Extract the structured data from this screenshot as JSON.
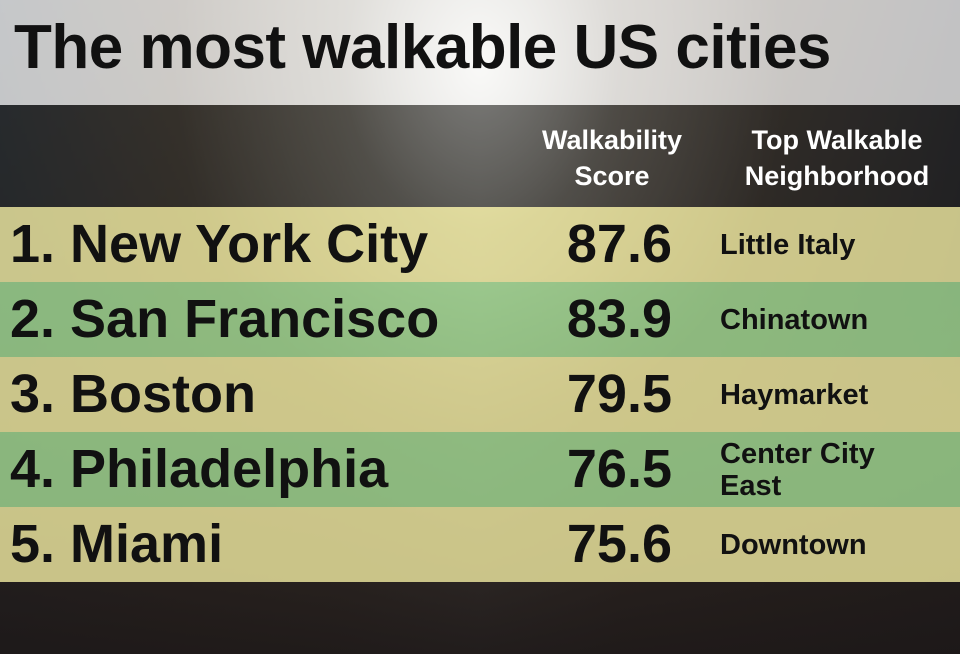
{
  "header": {
    "title": "The most walkable US cities"
  },
  "table": {
    "columns": [
      "Walkability Score",
      "Top Walkable Neighborhood"
    ],
    "rows": [
      {
        "city": "1. New York City",
        "score": 87.6,
        "neighborhood": "Little Italy"
      },
      {
        "city": "2. San Francisco",
        "score": 83.9,
        "neighborhood": "Chinatown"
      },
      {
        "city": "3. Boston",
        "score": 79.5,
        "neighborhood": "Haymarket"
      },
      {
        "city": "4. Philadelphia",
        "score": 76.5,
        "neighborhood": "Center City East"
      },
      {
        "city": "5. Miami",
        "score": 75.6,
        "neighborhood": "Downtown"
      }
    ]
  }
}
